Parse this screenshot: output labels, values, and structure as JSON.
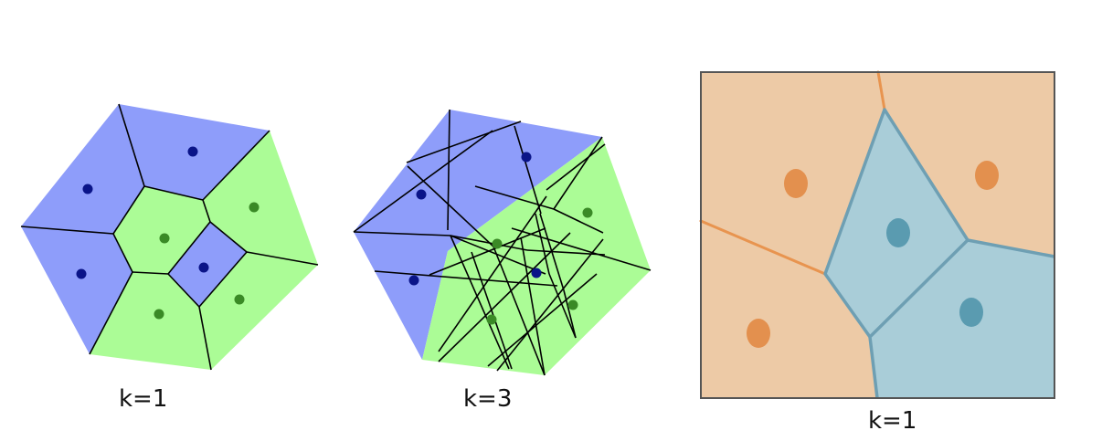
{
  "colors": {
    "class_a_region": "#8e9dfa",
    "class_b_region": "#abfc96",
    "class_a_point": "#0a1488",
    "class_b_point": "#3a8a26",
    "edge": "#000000",
    "orange_region": "#edcaa6",
    "orange_point": "#e3904e",
    "orange_edge": "#e8944f",
    "blue_region": "#a9cdd8",
    "blue_point": "#5a9bb0",
    "blue_edge": "#6e9fb3",
    "frame": "#555555"
  },
  "panels": [
    {
      "caption": "k=1"
    },
    {
      "caption": "k=3"
    },
    {
      "caption": "k=1"
    }
  ]
}
